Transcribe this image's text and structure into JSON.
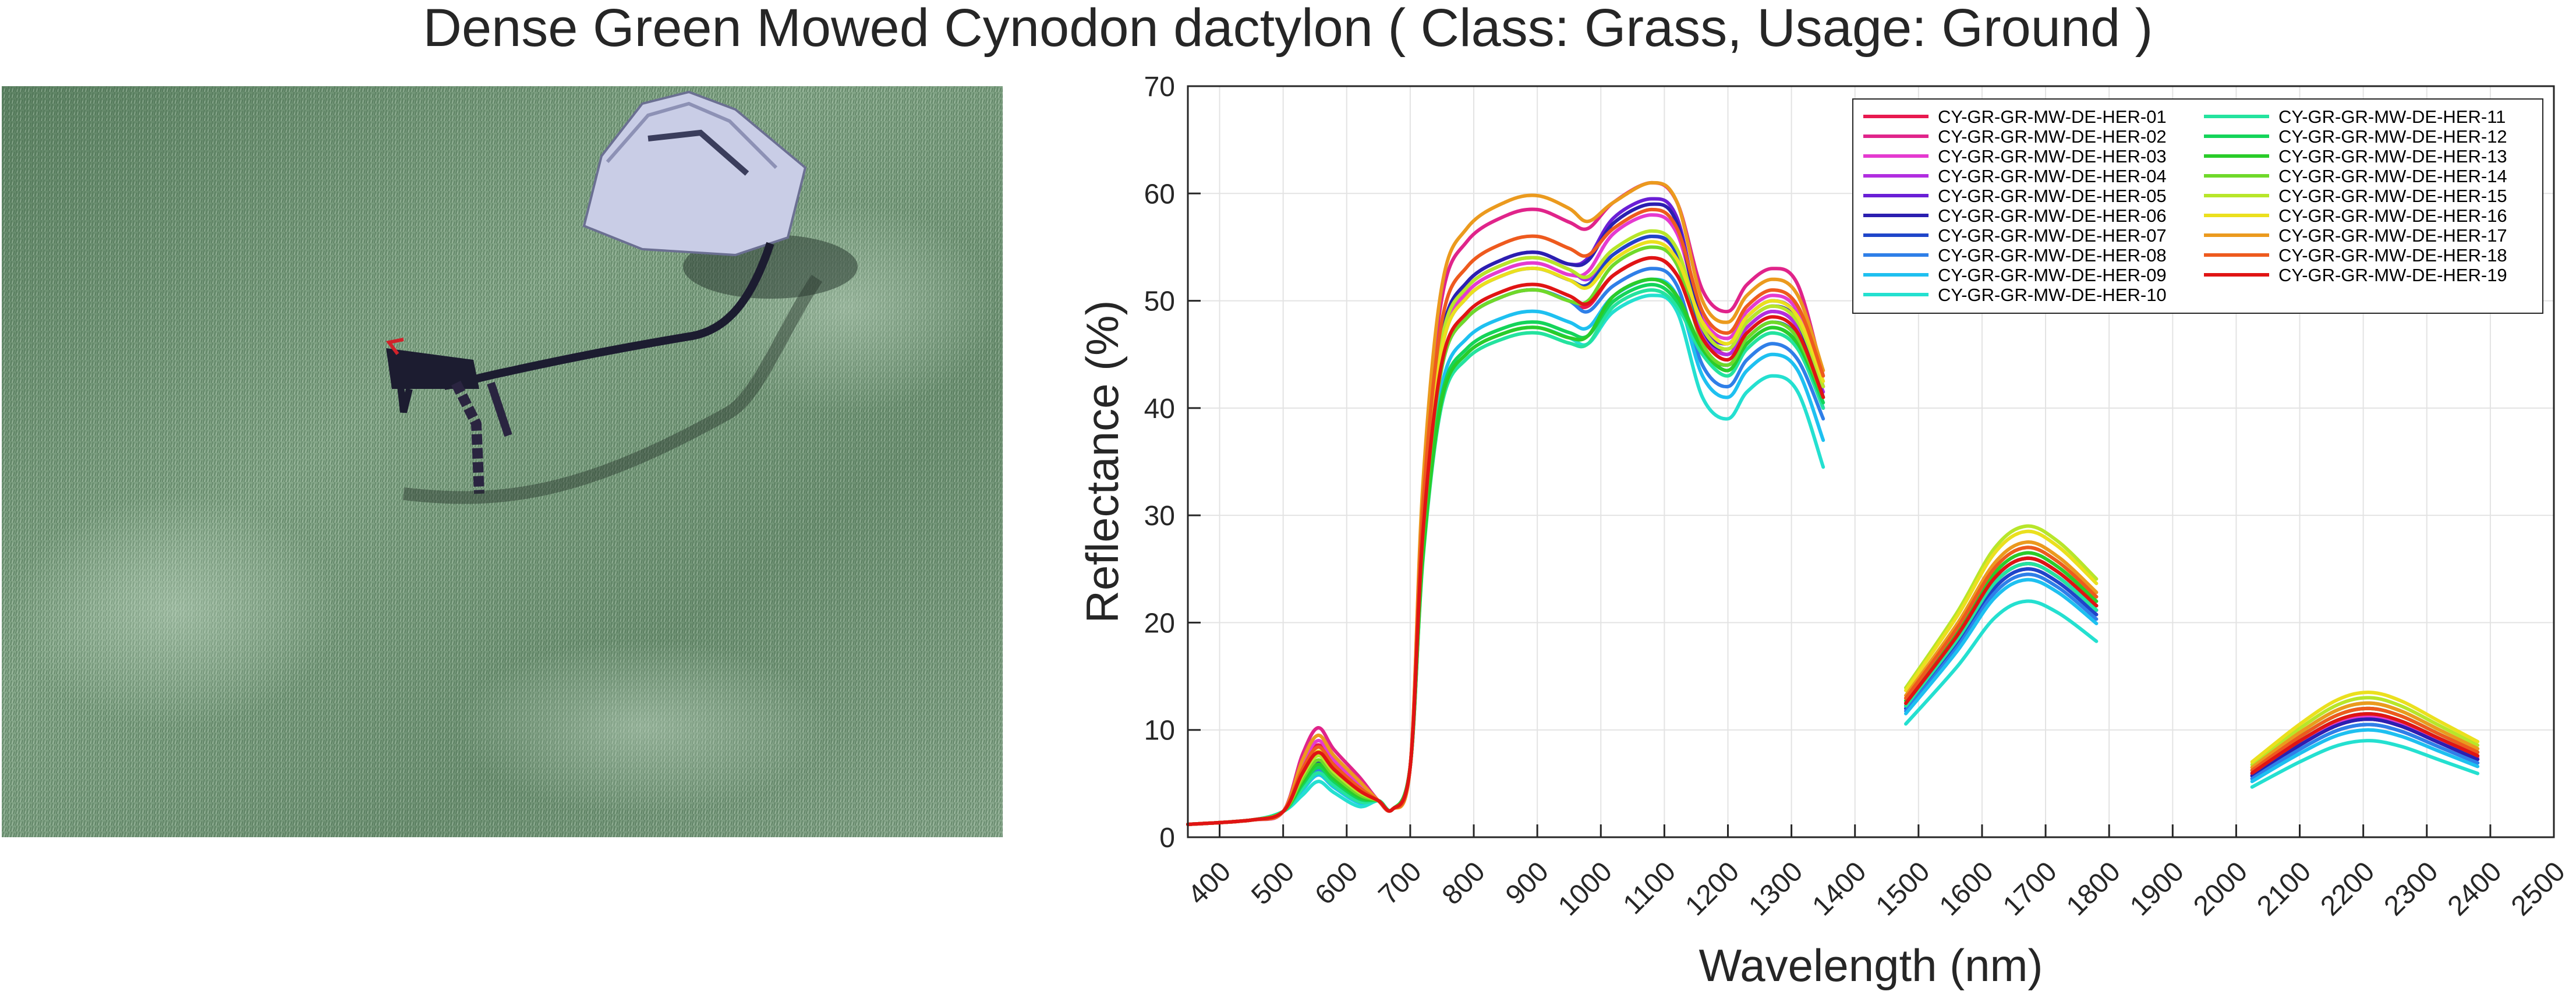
{
  "title": "Dense Green Mowed Cynodon dactylon ( Class: Grass, Usage: Ground )",
  "photo": {
    "description_icons": [
      "grass-field",
      "spectroradiometer-bag",
      "probe-tripod"
    ],
    "colors": {
      "grass_dark": "#4d7355",
      "grass_light": "#9ab59c",
      "bag": "#c9cde6",
      "probe": "#1c1c30"
    }
  },
  "chart_data": {
    "type": "line",
    "xlabel": "Wavelength (nm)",
    "ylabel": "Reflectance (%)",
    "xlim": [
      350,
      2500
    ],
    "ylim": [
      0,
      70
    ],
    "xticks": [
      400,
      500,
      600,
      700,
      800,
      900,
      1000,
      1100,
      1200,
      1300,
      1400,
      1500,
      1600,
      1700,
      1800,
      1900,
      2000,
      2100,
      2200,
      2300,
      2400,
      2500
    ],
    "yticks": [
      0,
      10,
      20,
      30,
      40,
      50,
      60,
      70
    ],
    "grid": true,
    "legend_position": "top-right",
    "legend_columns": 2,
    "segments": [
      [
        350,
        1350
      ],
      [
        1480,
        1780
      ],
      [
        2025,
        2380
      ]
    ],
    "series": [
      {
        "name": "CY-GR-GR-MW-DE-HER-01",
        "color": "#e8194f",
        "green_peak": 8.6,
        "nir_900": 51.0,
        "nir_1080": 54.0,
        "band_1270": 49.0,
        "end_1350": 41.0,
        "swir1_peak": 25.5,
        "swir2_peak": 11.0
      },
      {
        "name": "CY-GR-GR-MW-DE-HER-02",
        "color": "#e0248a",
        "green_peak": 10.2,
        "nir_900": 58.5,
        "nir_1080": 61.0,
        "band_1270": 53.0,
        "end_1350": 43.0,
        "swir1_peak": 26.0,
        "swir2_peak": 11.5
      },
      {
        "name": "CY-GR-GR-MW-DE-HER-03",
        "color": "#e53ad0",
        "green_peak": 9.0,
        "nir_900": 53.5,
        "nir_1080": 58.0,
        "band_1270": 50.5,
        "end_1350": 42.0,
        "swir1_peak": 26.0,
        "swir2_peak": 11.3
      },
      {
        "name": "CY-GR-GR-MW-DE-HER-04",
        "color": "#b12ee0",
        "green_peak": 8.0,
        "nir_900": 54.0,
        "nir_1080": 56.0,
        "band_1270": 49.0,
        "end_1350": 41.5,
        "swir1_peak": 25.0,
        "swir2_peak": 11.0
      },
      {
        "name": "CY-GR-GR-MW-DE-HER-05",
        "color": "#6a1fd6",
        "green_peak": 7.8,
        "nir_900": 54.5,
        "nir_1080": 59.5,
        "band_1270": 50.0,
        "end_1350": 42.0,
        "swir1_peak": 25.5,
        "swir2_peak": 11.0
      },
      {
        "name": "CY-GR-GR-MW-DE-HER-06",
        "color": "#2b1fb0",
        "green_peak": 7.0,
        "nir_900": 54.5,
        "nir_1080": 59.0,
        "band_1270": 49.5,
        "end_1350": 41.0,
        "swir1_peak": 26.0,
        "swir2_peak": 11.0
      },
      {
        "name": "CY-GR-GR-MW-DE-HER-07",
        "color": "#1f45c9",
        "green_peak": 6.8,
        "nir_900": 53.0,
        "nir_1080": 56.0,
        "band_1270": 48.0,
        "end_1350": 40.0,
        "swir1_peak": 25.0,
        "swir2_peak": 10.5
      },
      {
        "name": "CY-GR-GR-MW-DE-HER-08",
        "color": "#2f7fe8",
        "green_peak": 6.2,
        "nir_900": 51.0,
        "nir_1080": 53.0,
        "band_1270": 46.0,
        "end_1350": 39.0,
        "swir1_peak": 24.5,
        "swir2_peak": 10.5
      },
      {
        "name": "CY-GR-GR-MW-DE-HER-09",
        "color": "#1ec0f0",
        "green_peak": 5.8,
        "nir_900": 49.0,
        "nir_1080": 52.0,
        "band_1270": 45.0,
        "end_1350": 37.0,
        "swir1_peak": 24.0,
        "swir2_peak": 10.0
      },
      {
        "name": "CY-GR-GR-MW-DE-HER-10",
        "color": "#24e0d0",
        "green_peak": 5.2,
        "nir_900": 47.5,
        "nir_1080": 50.5,
        "band_1270": 43.0,
        "end_1350": 34.5,
        "swir1_peak": 22.0,
        "swir2_peak": 9.0
      },
      {
        "name": "CY-GR-GR-MW-DE-HER-11",
        "color": "#24e39e",
        "green_peak": 6.0,
        "nir_900": 47.0,
        "nir_1080": 51.0,
        "band_1270": 47.0,
        "end_1350": 40.0,
        "swir1_peak": 25.5,
        "swir2_peak": 11.5
      },
      {
        "name": "CY-GR-GR-MW-DE-HER-12",
        "color": "#14d45a",
        "green_peak": 6.5,
        "nir_900": 48.0,
        "nir_1080": 51.5,
        "band_1270": 47.5,
        "end_1350": 40.5,
        "swir1_peak": 26.0,
        "swir2_peak": 12.0
      },
      {
        "name": "CY-GR-GR-MW-DE-HER-13",
        "color": "#2acc2a",
        "green_peak": 6.8,
        "nir_900": 47.5,
        "nir_1080": 52.0,
        "band_1270": 47.5,
        "end_1350": 41.0,
        "swir1_peak": 26.5,
        "swir2_peak": 12.0
      },
      {
        "name": "CY-GR-GR-MW-DE-HER-14",
        "color": "#6fd92a",
        "green_peak": 7.2,
        "nir_900": 51.0,
        "nir_1080": 55.0,
        "band_1270": 48.0,
        "end_1350": 41.0,
        "swir1_peak": 27.0,
        "swir2_peak": 12.5
      },
      {
        "name": "CY-GR-GR-MW-DE-HER-15",
        "color": "#b7e62a",
        "green_peak": 7.6,
        "nir_900": 54.0,
        "nir_1080": 56.5,
        "band_1270": 49.5,
        "end_1350": 42.0,
        "swir1_peak": 29.0,
        "swir2_peak": 13.0
      },
      {
        "name": "CY-GR-GR-MW-DE-HER-16",
        "color": "#ebe01e",
        "green_peak": 8.0,
        "nir_900": 53.0,
        "nir_1080": 55.5,
        "band_1270": 50.0,
        "end_1350": 42.5,
        "swir1_peak": 28.5,
        "swir2_peak": 13.5
      },
      {
        "name": "CY-GR-GR-MW-DE-HER-17",
        "color": "#eb9a1e",
        "green_peak": 9.5,
        "nir_900": 59.8,
        "nir_1080": 61.0,
        "band_1270": 52.0,
        "end_1350": 43.5,
        "swir1_peak": 27.5,
        "swir2_peak": 12.5
      },
      {
        "name": "CY-GR-GR-MW-DE-HER-18",
        "color": "#ee5a1e",
        "green_peak": 8.4,
        "nir_900": 56.0,
        "nir_1080": 58.5,
        "band_1270": 51.0,
        "end_1350": 43.0,
        "swir1_peak": 27.0,
        "swir2_peak": 12.0
      },
      {
        "name": "CY-GR-GR-MW-DE-HER-19",
        "color": "#e01414",
        "green_peak": 7.9,
        "nir_900": 51.5,
        "nir_1080": 54.0,
        "band_1270": 48.5,
        "end_1350": 41.0,
        "swir1_peak": 26.0,
        "swir2_peak": 11.5
      }
    ]
  }
}
